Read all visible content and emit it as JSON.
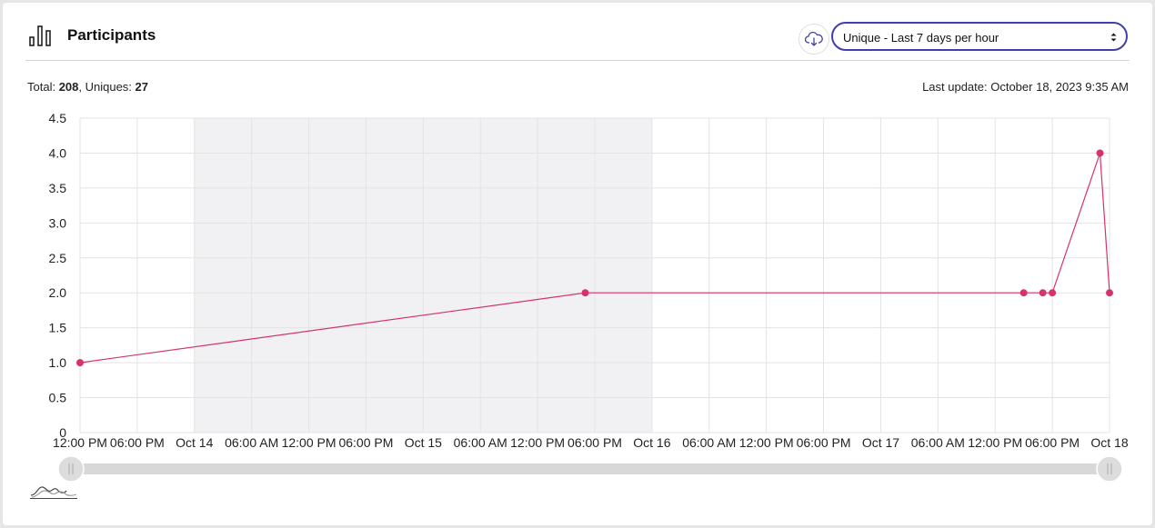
{
  "header": {
    "title": "Participants",
    "title_icon": "bar-chart-icon",
    "download_icon": "cloud-download-icon",
    "range_select": {
      "selected": "Unique - Last 7 days per hour"
    }
  },
  "summary": {
    "total_label": "Total: ",
    "total_value": "208",
    "uniques_label": ", Uniques: ",
    "uniques_value": "27",
    "last_update": "Last update: October 18, 2023 9:35 AM"
  },
  "colors": {
    "series": "#d6336c",
    "shade": "#f1f1f3",
    "grid": "#e3e3e3",
    "accent": "#3f3fad"
  },
  "chart_data": {
    "type": "line",
    "x_start": "2023-10-13T12:00",
    "x_end": "2023-10-18T00:00",
    "ylim": [
      0,
      4.5
    ],
    "yticks": [
      "0",
      "0.5",
      "1.0",
      "1.5",
      "2.0",
      "2.5",
      "3.0",
      "3.5",
      "4.0",
      "4.5"
    ],
    "xticks": [
      {
        "t": "2023-10-13T12:00",
        "label": "12:00 PM"
      },
      {
        "t": "2023-10-13T18:00",
        "label": "06:00 PM"
      },
      {
        "t": "2023-10-14T00:00",
        "label": "Oct 14"
      },
      {
        "t": "2023-10-14T06:00",
        "label": "06:00 AM"
      },
      {
        "t": "2023-10-14T12:00",
        "label": "12:00 PM"
      },
      {
        "t": "2023-10-14T18:00",
        "label": "06:00 PM"
      },
      {
        "t": "2023-10-15T00:00",
        "label": "Oct 15"
      },
      {
        "t": "2023-10-15T06:00",
        "label": "06:00 AM"
      },
      {
        "t": "2023-10-15T12:00",
        "label": "12:00 PM"
      },
      {
        "t": "2023-10-15T18:00",
        "label": "06:00 PM"
      },
      {
        "t": "2023-10-16T00:00",
        "label": "Oct 16"
      },
      {
        "t": "2023-10-16T06:00",
        "label": "06:00 AM"
      },
      {
        "t": "2023-10-16T12:00",
        "label": "12:00 PM"
      },
      {
        "t": "2023-10-16T18:00",
        "label": "06:00 PM"
      },
      {
        "t": "2023-10-17T00:00",
        "label": "Oct 17"
      },
      {
        "t": "2023-10-17T06:00",
        "label": "06:00 AM"
      },
      {
        "t": "2023-10-17T12:00",
        "label": "12:00 PM"
      },
      {
        "t": "2023-10-17T18:00",
        "label": "06:00 PM"
      },
      {
        "t": "2023-10-18T00:00",
        "label": "Oct 18"
      }
    ],
    "shaded_ranges": [
      [
        "2023-10-14T00:00",
        "2023-10-16T00:00"
      ]
    ],
    "series": [
      {
        "points": [
          {
            "x": "2023-10-13T12:00",
            "y": 1
          },
          {
            "x": "2023-10-15T17:00",
            "y": 2
          },
          {
            "x": "2023-10-17T15:00",
            "y": 2
          },
          {
            "x": "2023-10-17T17:00",
            "y": 2
          },
          {
            "x": "2023-10-17T18:00",
            "y": 2
          },
          {
            "x": "2023-10-17T23:00",
            "y": 4
          },
          {
            "x": "2023-10-18T00:00",
            "y": 2
          }
        ]
      }
    ],
    "grid": true
  }
}
